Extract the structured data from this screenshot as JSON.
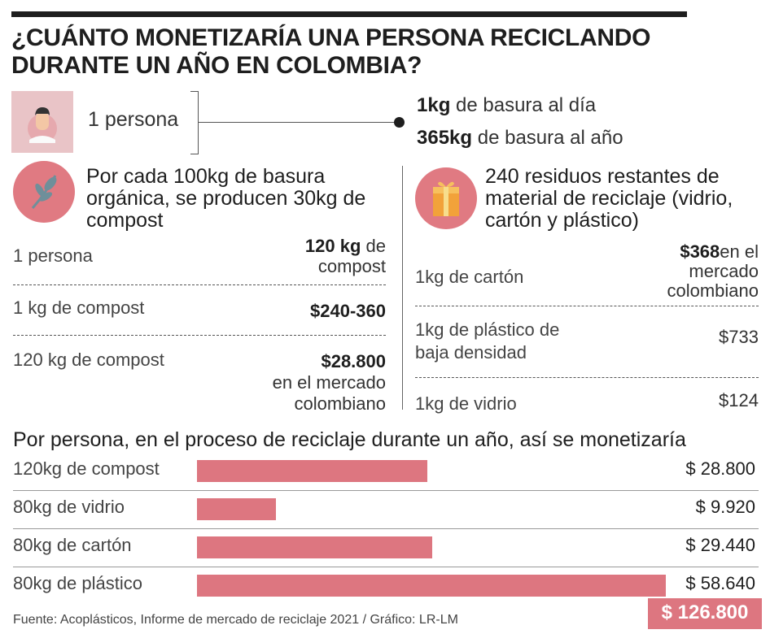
{
  "title": "¿CUÁNTO MONETIZARÍA UNA PERSONA RECICLANDO DURANTE UN AÑO EN COLOMBIA?",
  "person": {
    "label": "1 persona",
    "daily_bold": "1kg",
    "daily_rest": " de basura al día",
    "yearly_bold": "365kg",
    "yearly_rest": " de basura al año"
  },
  "compost": {
    "heading": "Por cada 100kg de basura orgánica, se producen 30kg de compost",
    "rows": [
      {
        "label": "1 persona",
        "value_bold": "120 kg",
        "value_rest": " de compost"
      },
      {
        "label": "1 kg de compost",
        "value_bold": "$240-360",
        "value_rest": ""
      },
      {
        "label": "120 kg de compost",
        "value_bold": "$28.800",
        "value_rest": "en el mercado colombiano"
      }
    ]
  },
  "recycling": {
    "heading": "240 residuos restantes de material de reciclaje (vidrio, cartón y plástico)",
    "rows": [
      {
        "label": "1kg de cartón",
        "value_bold": "$368",
        "value_rest": "en el mercado colombiano"
      },
      {
        "label": "1kg de plástico de baja densidad",
        "value_bold": "",
        "value_rest": "$733"
      },
      {
        "label": "1kg de vidrio",
        "value_bold": "",
        "value_rest": "$124"
      }
    ]
  },
  "chart_data": {
    "type": "bar",
    "title": "Por persona, en el proceso de reciclaje durante un año, así se monetizaría",
    "categories": [
      "120kg de compost",
      "80kg de vidrio",
      "80kg de cartón",
      "80kg de plástico"
    ],
    "values": [
      28800,
      9920,
      29440,
      58640
    ],
    "value_labels": [
      "$ 28.800",
      "$ 9.920",
      "$ 29.440",
      "$ 58.640"
    ],
    "total_label": "$ 126.800",
    "colors": {
      "bar": "#dd7680",
      "icon_circle": "#e07a82",
      "icon_box": "#e9c4c7"
    }
  },
  "icons": {
    "person": "person-icon",
    "leaf": "leaf-icon",
    "box": "box-icon"
  },
  "footer": "Fuente: Acoplásticos, Informe de mercado de reciclaje 2021 / Gráfico: LR-LM"
}
